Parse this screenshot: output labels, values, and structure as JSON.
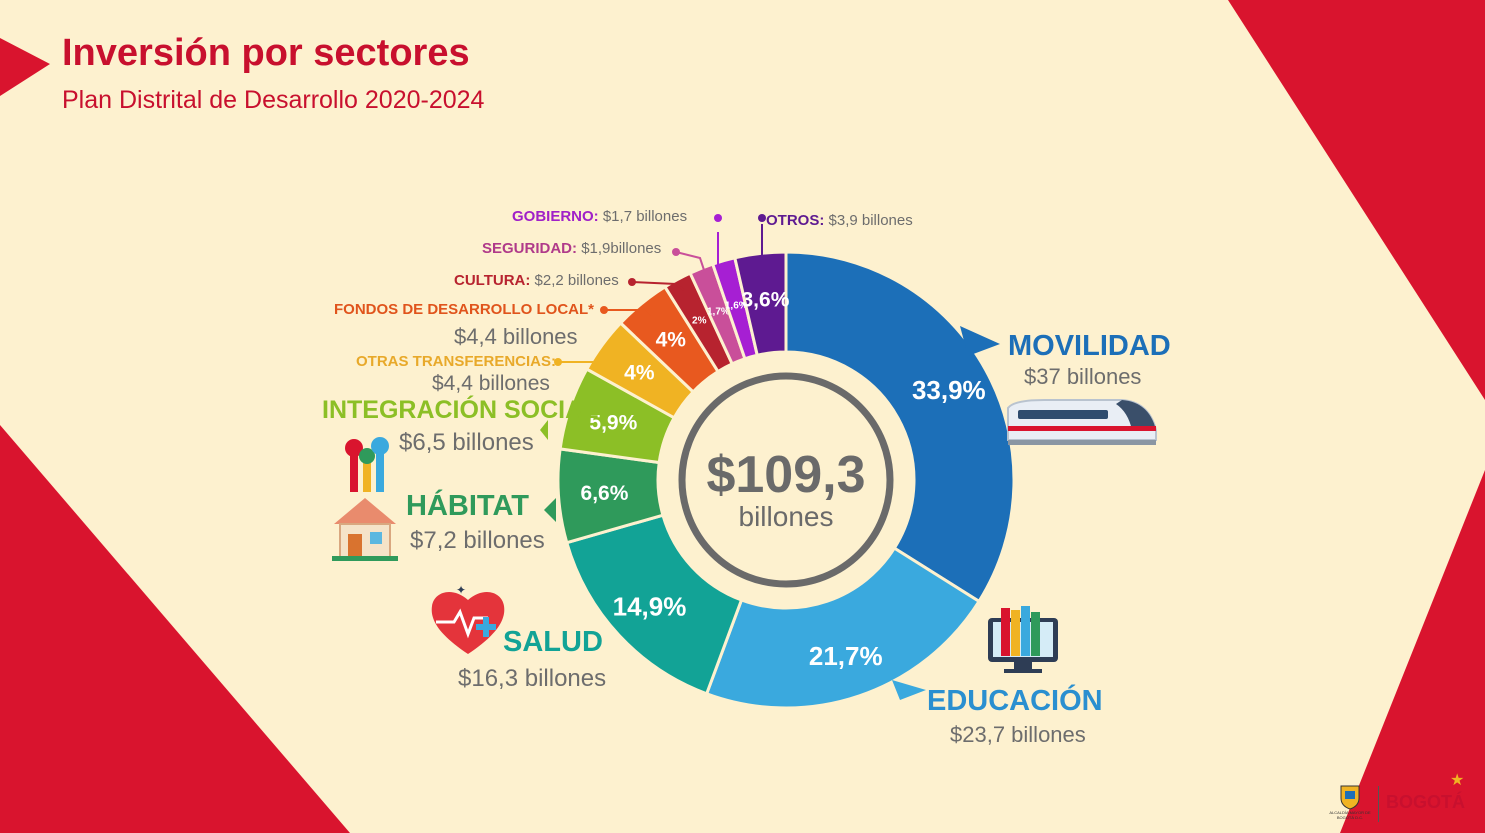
{
  "header": {
    "title": "Inversión por sectores",
    "subtitle": "Plan Distrital de Desarrollo 2020-2024"
  },
  "colors": {
    "background": "#fdf1cf",
    "accent_red": "#c8102e"
  },
  "chart_data": {
    "type": "pie",
    "title": "Inversión por sectores",
    "subtitle": "Plan Distrital de Desarrollo 2020-2024",
    "center_value": "$109,3",
    "center_unit": "billones",
    "total": 109.3,
    "unit": "billones",
    "slices": [
      {
        "name": "MOVILIDAD",
        "value": 37,
        "value_label": "$37 billones",
        "percent": 33.9,
        "percent_label": "33,9%",
        "color": "#1c6fb8"
      },
      {
        "name": "EDUCACIÓN",
        "value": 23.7,
        "value_label": "$23,7 billones",
        "percent": 21.7,
        "percent_label": "21,7%",
        "color": "#3aa9de"
      },
      {
        "name": "SALUD",
        "value": 16.3,
        "value_label": "$16,3 billones",
        "percent": 14.9,
        "percent_label": "14,9%",
        "color": "#12a396"
      },
      {
        "name": "HÁBITAT",
        "value": 7.2,
        "value_label": "$7,2 billones",
        "percent": 6.6,
        "percent_label": "6,6%",
        "color": "#2f9a5b"
      },
      {
        "name": "INTEGRACIÓN SOCIAL",
        "value": 6.5,
        "value_label": "$6,5 billones",
        "percent": 5.9,
        "percent_label": "5,9%",
        "color": "#8cbf26"
      },
      {
        "name": "OTRAS TRANSFERENCIAS:",
        "value": 4.4,
        "value_label": "$4,4 billones",
        "percent": 4,
        "percent_label": "4%",
        "color": "#f0b323"
      },
      {
        "name": "FONDOS DE DESARROLLO LOCAL*",
        "value": 4.4,
        "value_label": "$4,4 billones",
        "percent": 4,
        "percent_label": "4%",
        "color": "#e8591f"
      },
      {
        "name": "CULTURA:",
        "value": 2.2,
        "value_label": "$2,2 billones",
        "percent": 2,
        "percent_label": "2%",
        "color": "#b7232f"
      },
      {
        "name": "SEGURIDAD:",
        "value": 1.9,
        "value_label": "$1,9billones",
        "percent": 1.7,
        "percent_label": "1,7%",
        "color": "#c94f9a"
      },
      {
        "name": "GOBIERNO:",
        "value": 1.7,
        "value_label": "$1,7 billones",
        "percent": 1.6,
        "percent_label": "1,6%",
        "color": "#a61fd3"
      },
      {
        "name": "OTROS:",
        "value": 3.9,
        "value_label": "$3,9 billones",
        "percent": 3.6,
        "percent_label": "3,6%",
        "color": "#5e1a91"
      }
    ]
  },
  "logos": {
    "brand": "BOGOTÁ",
    "alcaldia": "ALCALDÍA MAYOR DE BOGOTÁ D.C."
  },
  "icons": [
    "train-icon",
    "books-icon",
    "heart-icon",
    "house-icon",
    "hands-icon"
  ]
}
